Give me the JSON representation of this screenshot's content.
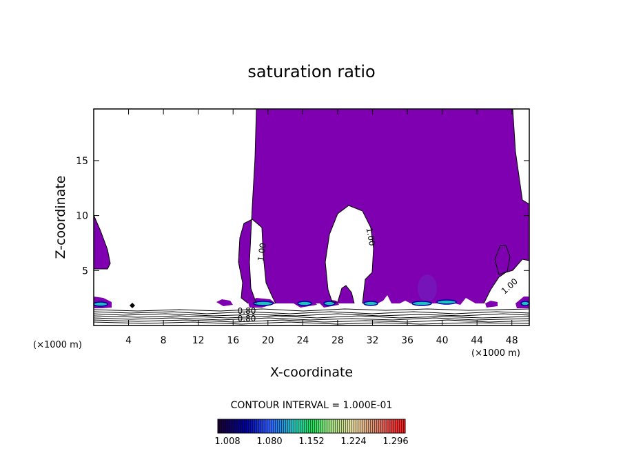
{
  "chart_data": {
    "type": "contour",
    "title": "saturation ratio",
    "xlabel": "X-coordinate",
    "ylabel": "Z-coordinate",
    "x_unit": "(×1000 m)",
    "xlim": [
      0,
      50
    ],
    "ylim": [
      0,
      19.7
    ],
    "x_ticks": [
      4,
      8,
      12,
      16,
      20,
      24,
      28,
      32,
      36,
      40,
      44,
      48
    ],
    "y_ticks": [
      5,
      10,
      15
    ],
    "contour_interval_text": "CONTOUR INTERVAL = 1.000E-01",
    "contour_labels": [
      "1.00",
      "1.00",
      "1.00",
      "0.80",
      "0.80"
    ],
    "colorbar": {
      "ticks": [
        "1.008",
        "1.080",
        "1.152",
        "1.224",
        "1.296"
      ],
      "colors": [
        "#1a0040",
        "#0000a0",
        "#3060ff",
        "#20c0c0",
        "#20e060",
        "#a0e080",
        "#e0e0a0",
        "#e0a080",
        "#e04040",
        "#ff2020"
      ]
    },
    "fill_color": "#7f00b0",
    "grid": false,
    "legend": "none"
  }
}
